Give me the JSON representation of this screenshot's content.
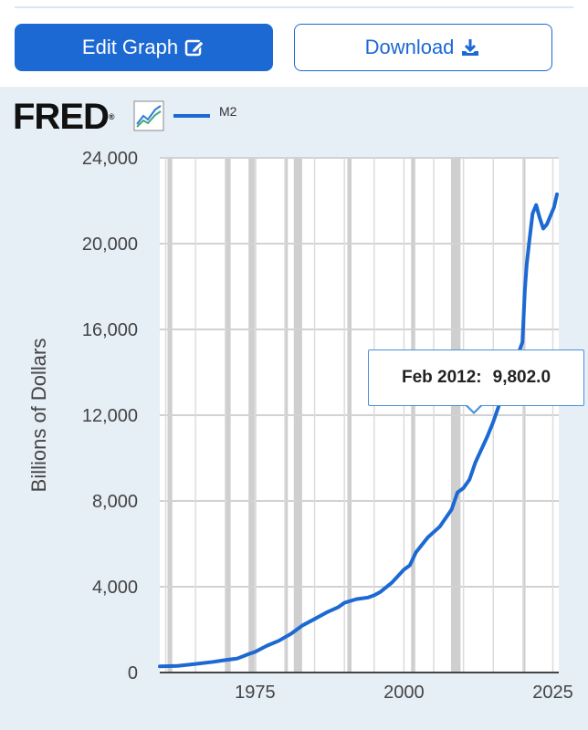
{
  "toolbar": {
    "edit_label": "Edit Graph",
    "download_label": "Download"
  },
  "logo": {
    "text": "FRED",
    "reg": "®"
  },
  "colors": {
    "accent": "#1c69d3",
    "panel": "#e6eef6",
    "recession": "#cfcfcf"
  },
  "icons": {
    "edit": "edit-icon",
    "download": "download-icon",
    "chart": "chart-icon"
  },
  "tooltip": {
    "date": "Feb 2012:",
    "value": "9,802.0"
  },
  "chart_data": {
    "type": "line",
    "ylabel": "Billions of Dollars",
    "xlim": [
      1959,
      2026
    ],
    "ylim": [
      0,
      24000
    ],
    "x_ticks": [
      1975,
      2000,
      2025
    ],
    "y_ticks": [
      0,
      4000,
      8000,
      12000,
      16000,
      20000,
      24000
    ],
    "y_tick_labels": [
      "0",
      "4,000",
      "8,000",
      "12,000",
      "16,000",
      "20,000",
      "24,000"
    ],
    "grid": true,
    "recessions": [
      [
        1960.3,
        1961.1
      ],
      [
        1969.9,
        1970.9
      ],
      [
        1973.9,
        1975.2
      ],
      [
        1980.0,
        1980.5
      ],
      [
        1981.5,
        1982.9
      ],
      [
        1990.5,
        1991.2
      ],
      [
        2001.2,
        2001.9
      ],
      [
        2007.9,
        2009.5
      ],
      [
        2020.1,
        2020.4
      ]
    ],
    "series": [
      {
        "name": "M2",
        "x": [
          1959,
          1962,
          1965,
          1968,
          1970,
          1972,
          1974,
          1975,
          1977,
          1979,
          1981,
          1983,
          1985,
          1987,
          1989,
          1990,
          1992,
          1994,
          1995,
          1996,
          1998,
          2000,
          2001,
          2002,
          2004,
          2006,
          2008,
          2009,
          2010,
          2011,
          2012,
          2013,
          2014,
          2015,
          2016,
          2017,
          2018,
          2019,
          2019.9,
          2020.3,
          2020.6,
          2021,
          2021.6,
          2022.2,
          2022.8,
          2023.4,
          2024,
          2024.6,
          2025.2,
          2025.7
        ],
        "values": [
          290,
          310,
          400,
          500,
          580,
          650,
          870,
          960,
          1250,
          1480,
          1800,
          2200,
          2500,
          2800,
          3050,
          3250,
          3420,
          3500,
          3600,
          3750,
          4200,
          4800,
          5000,
          5600,
          6300,
          6800,
          7600,
          8400,
          8600,
          9000,
          9802,
          10400,
          11000,
          11700,
          12500,
          13300,
          13900,
          14700,
          15400,
          17800,
          19000,
          20000,
          21400,
          21800,
          21200,
          20700,
          20900,
          21300,
          21700,
          22300
        ]
      }
    ]
  }
}
